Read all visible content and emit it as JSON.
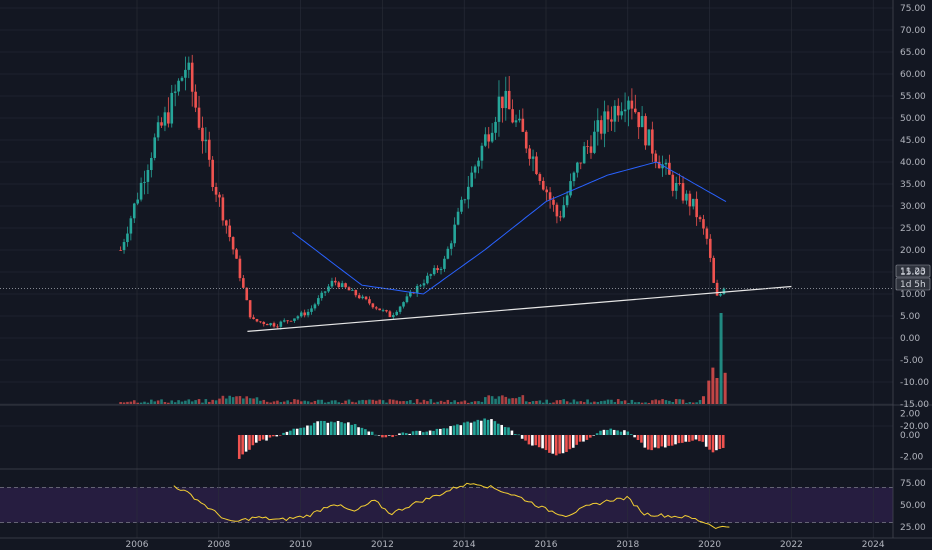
{
  "chart_data": {
    "type": "candlestick",
    "colors": {
      "background": "#131722",
      "grid": "#2a2e39",
      "up": "#26a69a",
      "down": "#ef5350",
      "ma": "#2962ff",
      "trendline": "#e6e6e6",
      "price_line": "#9598a1",
      "macd_pos": "#26a69a",
      "macd_neg": "#ef5350",
      "macd_white": "#ffffff",
      "rsi": "#f5d033",
      "rsi_band": "#2a1f45"
    },
    "x_ticks": [
      "2006",
      "2008",
      "2010",
      "2012",
      "2014",
      "2016",
      "2018",
      "2020",
      "2022",
      "2024"
    ],
    "price_axis": {
      "ticks": [
        "75.00",
        "70.00",
        "65.00",
        "60.00",
        "55.00",
        "50.00",
        "45.00",
        "40.00",
        "35.00",
        "30.00",
        "25.00",
        "20.00",
        "15.00",
        "10.00",
        "5.00",
        "0.00",
        "-5.00",
        "-10.00",
        "-15.00",
        "-20.00"
      ],
      "range": [
        -20,
        75
      ],
      "last_price": "11.23",
      "countdown": "1d 5h"
    },
    "macd_axis": {
      "ticks": [
        "2.00",
        "0.00",
        "-2.00"
      ],
      "range": [
        -3,
        3
      ]
    },
    "rsi_axis": {
      "ticks": [
        "75.00",
        "50.00",
        "25.00"
      ],
      "range": [
        20,
        80
      ],
      "band": [
        30,
        70
      ]
    },
    "anchors": {
      "years": [
        2005.6,
        2006.4,
        2006.8,
        2007.2,
        2007.8,
        2008.3,
        2008.8,
        2009.4,
        2010.2,
        2010.8,
        2011.5,
        2012.2,
        2012.9,
        2013.5,
        2014.1,
        2014.9,
        2015.6,
        2016.3,
        2016.9,
        2017.5,
        2018.0,
        2018.5,
        2019.1,
        2019.6,
        2019.95,
        2020.15,
        2020.4
      ],
      "close": [
        20,
        44,
        52,
        62,
        38,
        22,
        4,
        3,
        6,
        13,
        9,
        5,
        12,
        17,
        35,
        55,
        43,
        27,
        42,
        50,
        56,
        45,
        35,
        30,
        22,
        9,
        11.23
      ]
    },
    "moving_average": {
      "years": [
        2009.8,
        2011.5,
        2013.0,
        2014.5,
        2016.0,
        2017.5,
        2018.7,
        2020.4
      ],
      "values": [
        24,
        12,
        10,
        20,
        31,
        37,
        40,
        31
      ]
    },
    "trendline": {
      "start": [
        2008.7,
        1.5
      ],
      "end": [
        2022.0,
        11.7
      ]
    },
    "volume": {
      "years": [
        2019.85,
        2019.98,
        2020.08,
        2020.18,
        2020.28,
        2020.38
      ],
      "values": [
        3,
        9,
        14,
        10,
        35,
        12
      ]
    },
    "macd": {
      "years": [
        2008.5,
        2008.9,
        2009.6,
        2010.4,
        2011.0,
        2011.6,
        2012.0,
        2012.6,
        2013.4,
        2014.1,
        2014.6,
        2015.1,
        2015.6,
        2016.3,
        2016.9,
        2017.4,
        2018.0,
        2018.5,
        2019.1,
        2019.7,
        2020.1,
        2020.4
      ],
      "values": [
        -2.2,
        -0.8,
        0.2,
        1.2,
        1.3,
        0.6,
        -0.3,
        0.2,
        0.5,
        1.2,
        1.5,
        0.6,
        -0.8,
        -1.9,
        -0.6,
        0.6,
        0.3,
        -1.4,
        -1.0,
        -0.3,
        -1.6,
        -1.1
      ]
    },
    "rsi": {
      "years": [
        2006.9,
        2007.3,
        2007.8,
        2008.3,
        2008.9,
        2009.5,
        2010.2,
        2010.8,
        2011.3,
        2011.8,
        2012.2,
        2012.8,
        2013.4,
        2013.9,
        2014.3,
        2014.8,
        2015.4,
        2016.0,
        2016.5,
        2017.0,
        2017.6,
        2018.0,
        2018.4,
        2018.9,
        2019.5,
        2019.9,
        2020.2,
        2020.5
      ],
      "values": [
        72,
        62,
        45,
        30,
        36,
        33,
        38,
        52,
        42,
        55,
        40,
        52,
        62,
        72,
        75,
        68,
        58,
        45,
        38,
        48,
        56,
        58,
        40,
        38,
        36,
        30,
        24,
        26
      ]
    }
  }
}
